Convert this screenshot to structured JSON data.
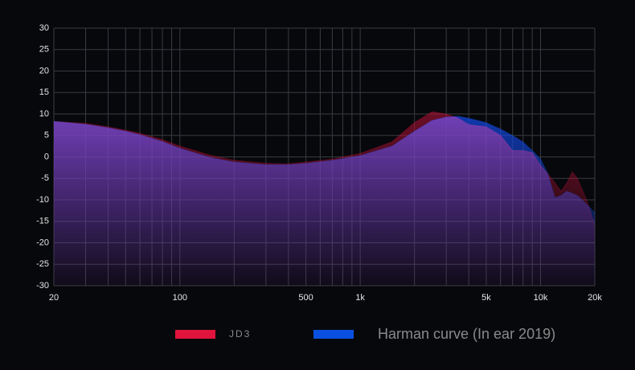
{
  "chart_data": {
    "type": "area",
    "xscale": "log",
    "x": [
      20,
      30,
      40,
      50,
      60,
      80,
      100,
      150,
      200,
      300,
      400,
      500,
      700,
      1000,
      1500,
      2000,
      2500,
      3000,
      3500,
      4000,
      5000,
      6000,
      7000,
      8000,
      9000,
      10000,
      11000,
      12000,
      13000,
      14000,
      15000,
      16000,
      18000,
      20000
    ],
    "series": [
      {
        "name": "JD3",
        "color": "#e0143c",
        "values": [
          8.3,
          7.8,
          7,
          6.2,
          5.5,
          4,
          2.5,
          0.3,
          -0.8,
          -1.5,
          -1.6,
          -1.2,
          -0.5,
          0.8,
          3.5,
          8,
          10.5,
          10,
          9,
          7.5,
          7,
          5,
          1.5,
          1.5,
          1,
          -2,
          -4,
          -6,
          -8,
          -6,
          -3.5,
          -5,
          -10,
          -16
        ]
      },
      {
        "name": "Harman curve (In ear 2019)",
        "color": "#0a50e0",
        "values": [
          8.3,
          7.6,
          6.8,
          6,
          5.2,
          3.6,
          2,
          -0.2,
          -1.2,
          -1.8,
          -1.8,
          -1.5,
          -0.8,
          0.3,
          2.5,
          6,
          8.5,
          9.3,
          9.5,
          9,
          8,
          6.5,
          5,
          3.5,
          1.5,
          -0.5,
          -4,
          -9.5,
          -9,
          -8,
          -8.5,
          -9,
          -11,
          -13
        ]
      }
    ],
    "xlim": [
      20,
      20000
    ],
    "xticks": [
      20,
      100,
      500,
      {
        "value": 1000,
        "label": "1k"
      },
      {
        "value": 5000,
        "label": "5k"
      },
      {
        "value": 10000,
        "label": "10k"
      },
      {
        "value": 20000,
        "label": "20k"
      }
    ],
    "xgrid": [
      20,
      30,
      40,
      50,
      60,
      70,
      80,
      90,
      100,
      200,
      300,
      400,
      500,
      600,
      700,
      800,
      900,
      1000,
      2000,
      3000,
      4000,
      5000,
      6000,
      7000,
      8000,
      9000,
      10000,
      20000
    ],
    "ylim": [
      -30,
      30
    ],
    "yticks": [
      30,
      25,
      20,
      15,
      10,
      5,
      0,
      -5,
      -10,
      -15,
      -20,
      -25,
      -30
    ],
    "grid": true
  }
}
